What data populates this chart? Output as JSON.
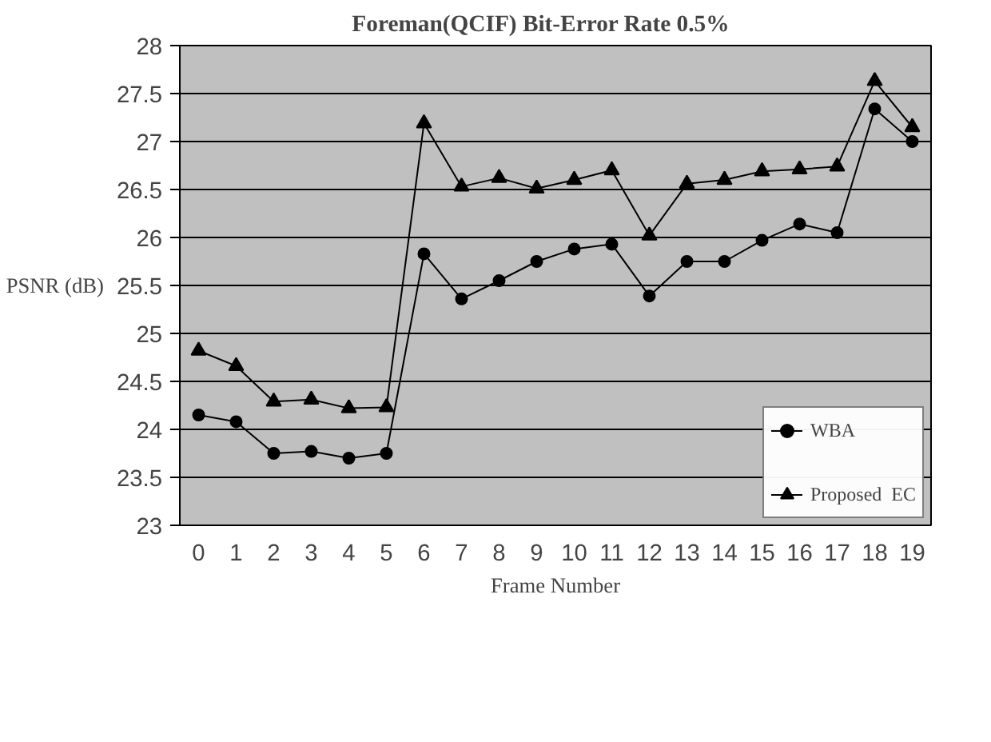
{
  "chart_data": {
    "type": "line",
    "title": "Foreman(QCIF)      Bit-Error Rate 0.5%",
    "xlabel": "Frame Number",
    "ylabel": "PSNR (dB)",
    "x": [
      0,
      1,
      2,
      3,
      4,
      5,
      6,
      7,
      8,
      9,
      10,
      11,
      12,
      13,
      14,
      15,
      16,
      17,
      18,
      19
    ],
    "xlim": [
      -0.5,
      19.5
    ],
    "xticks": [
      0,
      1,
      2,
      3,
      4,
      5,
      6,
      7,
      8,
      9,
      10,
      11,
      12,
      13,
      14,
      15,
      16,
      17,
      18,
      19
    ],
    "ylim": [
      23,
      28
    ],
    "yticks": [
      23,
      23.5,
      24,
      24.5,
      25,
      25.5,
      26,
      26.5,
      27,
      27.5,
      28
    ],
    "grid": "y",
    "legend": "bottom right",
    "series": [
      {
        "name": "WBA",
        "color": "#000000",
        "marker": "circle",
        "values": [
          24.15,
          24.08,
          23.75,
          23.77,
          23.7,
          23.75,
          25.83,
          25.36,
          25.55,
          25.75,
          25.88,
          25.93,
          25.39,
          25.75,
          25.75,
          25.97,
          26.14,
          26.05,
          27.34,
          27.0
        ]
      },
      {
        "name": "Proposed  EC",
        "color": "#000000",
        "marker": "triangle",
        "values": [
          24.82,
          24.66,
          24.29,
          24.31,
          24.22,
          24.23,
          27.19,
          26.53,
          26.62,
          26.51,
          26.6,
          26.7,
          26.02,
          26.56,
          26.6,
          26.69,
          26.71,
          26.74,
          27.63,
          27.15
        ]
      }
    ]
  }
}
